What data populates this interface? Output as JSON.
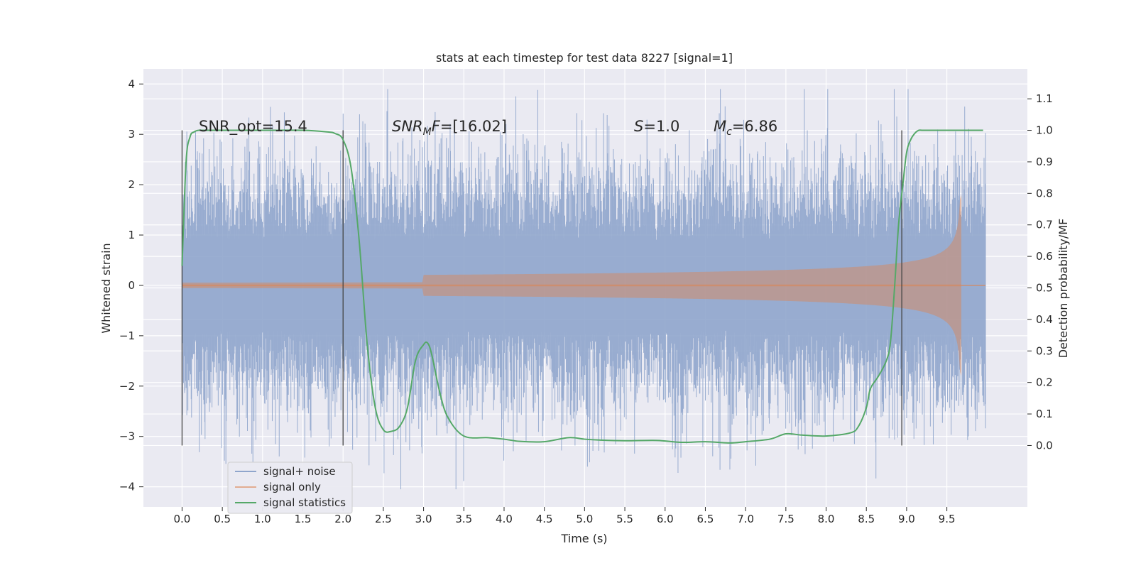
{
  "chart_data": {
    "type": "line",
    "title": "stats at each timestep for test data 8227 [signal=1]",
    "xlabel": "Time (s)",
    "ylabel": "Whitened strain",
    "y2label": "Detection probability/MF",
    "xlim": [
      -0.48,
      10.5
    ],
    "ylim": [
      -4.4,
      4.3
    ],
    "y2lim": [
      -0.195,
      1.195
    ],
    "xticks": [
      0.0,
      0.5,
      1.0,
      1.5,
      2.0,
      2.5,
      3.0,
      3.5,
      4.0,
      4.5,
      5.0,
      5.5,
      6.0,
      6.5,
      7.0,
      7.5,
      8.0,
      8.5,
      9.0,
      9.5
    ],
    "xtick_labels": [
      "0.0",
      "0.5",
      "1.0",
      "1.5",
      "2.0",
      "2.5",
      "3.0",
      "3.5",
      "4.0",
      "4.5",
      "5.0",
      "5.5",
      "6.0",
      "6.5",
      "7.0",
      "7.5",
      "8.0",
      "8.5",
      "9.0",
      "9.5"
    ],
    "yticks": [
      -4,
      -3,
      -2,
      -1,
      0,
      1,
      2,
      3,
      4
    ],
    "ytick_labels": [
      "−4",
      "−3",
      "−2",
      "−1",
      "0",
      "1",
      "2",
      "3",
      "4"
    ],
    "y2ticks": [
      0.0,
      0.1,
      0.2,
      0.3,
      0.4,
      0.5,
      0.6,
      0.7,
      0.8,
      0.9,
      1.0,
      1.1
    ],
    "y2tick_labels": [
      "0.0",
      "0.1",
      "0.2",
      "0.3",
      "0.4",
      "0.5",
      "0.6",
      "0.7",
      "0.8",
      "0.9",
      "1.0",
      "1.1"
    ],
    "grid": true,
    "legend_position": "lower-left",
    "annotations": {
      "snr_opt": "SNR_opt=15.4",
      "snr_mf_italic": "SNR",
      "snr_mf_sub": "M",
      "snr_mf_f": "F",
      "snr_mf_rest": "=[16.02]",
      "s_italic": "S",
      "s_rest": "=1.0",
      "mc_italic": "M",
      "mc_sub": "c",
      "mc_rest": "=6.86"
    },
    "vertical_markers_x": [
      0.0,
      2.0,
      8.94
    ],
    "series": [
      {
        "name": "signal+ noise",
        "color": "#8fa5cc",
        "description_values": {
          "t_start": 0.0,
          "t_end": 9.98,
          "typical_range": [
            -2.5,
            2.5
          ],
          "max": 3.9,
          "min": -4.05
        }
      },
      {
        "name": "signal only",
        "color": "#dd8452",
        "description_values": {
          "t_merger": 9.68,
          "peak_amplitude": 1.8,
          "amplitude_at_5s": 0.03,
          "amplitude_at_9s": 0.45
        }
      },
      {
        "name": "signal statistics",
        "color": "#55a868",
        "axis": "right",
        "x": [
          0.0,
          0.05,
          0.1,
          0.15,
          0.2,
          0.3,
          0.5,
          1.0,
          1.5,
          1.8,
          1.9,
          2.0,
          2.1,
          2.2,
          2.3,
          2.4,
          2.5,
          2.6,
          2.7,
          2.8,
          2.9,
          3.0,
          3.05,
          3.1,
          3.2,
          3.3,
          3.5,
          3.8,
          4.0,
          4.2,
          4.5,
          4.8,
          5.0,
          5.2,
          5.5,
          5.9,
          6.2,
          6.5,
          6.8,
          7.0,
          7.3,
          7.5,
          7.7,
          8.0,
          8.3,
          8.4,
          8.5,
          8.55,
          8.65,
          8.75,
          8.8,
          8.85,
          8.9,
          8.95,
          9.0,
          9.05,
          9.1,
          9.15,
          9.2,
          9.3,
          9.5,
          9.7,
          9.95
        ],
        "values": [
          0.57,
          0.9,
          0.98,
          0.995,
          1.0,
          1.0,
          1.0,
          1.0,
          1.0,
          0.995,
          0.99,
          0.97,
          0.88,
          0.65,
          0.32,
          0.12,
          0.05,
          0.045,
          0.06,
          0.12,
          0.27,
          0.32,
          0.325,
          0.29,
          0.17,
          0.09,
          0.03,
          0.025,
          0.02,
          0.013,
          0.012,
          0.025,
          0.02,
          0.017,
          0.015,
          0.016,
          0.01,
          0.012,
          0.008,
          0.012,
          0.02,
          0.037,
          0.033,
          0.03,
          0.04,
          0.06,
          0.12,
          0.18,
          0.22,
          0.27,
          0.33,
          0.5,
          0.7,
          0.82,
          0.93,
          0.97,
          0.99,
          1.0,
          1.0,
          1.0,
          1.0,
          1.0,
          1.0
        ]
      }
    ]
  }
}
